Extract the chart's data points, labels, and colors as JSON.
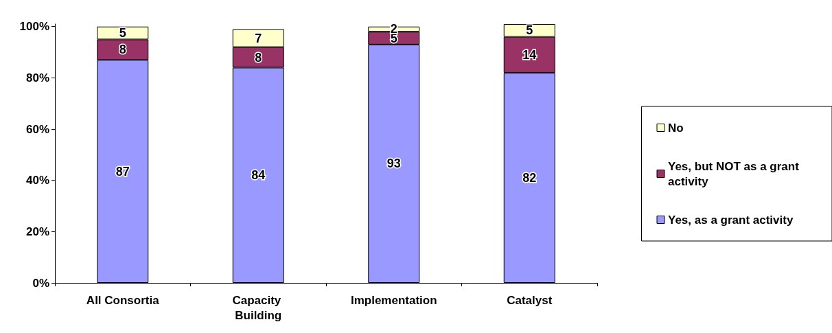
{
  "chart_data": {
    "type": "bar",
    "stacked": true,
    "categories": [
      "All Consortia",
      "Capacity Building",
      "Implementation",
      "Catalyst"
    ],
    "series": [
      {
        "name": "Yes, as a grant activity",
        "color": "#9999ff",
        "values": [
          87,
          84,
          93,
          82
        ]
      },
      {
        "name": "Yes, but NOT as a grant activity",
        "color": "#993366",
        "values": [
          8,
          8,
          5,
          14
        ]
      },
      {
        "name": "No",
        "color": "#ffffcc",
        "values": [
          5,
          7,
          2,
          5
        ]
      }
    ],
    "ylim": [
      0,
      101
    ],
    "yticks": [
      {
        "value": 0,
        "label": "0%"
      },
      {
        "value": 20,
        "label": "20%"
      },
      {
        "value": 40,
        "label": "40%"
      },
      {
        "value": 60,
        "label": "60%"
      },
      {
        "value": 80,
        "label": "80%"
      },
      {
        "value": 100,
        "label": "100%"
      }
    ],
    "data_labels": true,
    "grid": false,
    "legend": "right"
  }
}
